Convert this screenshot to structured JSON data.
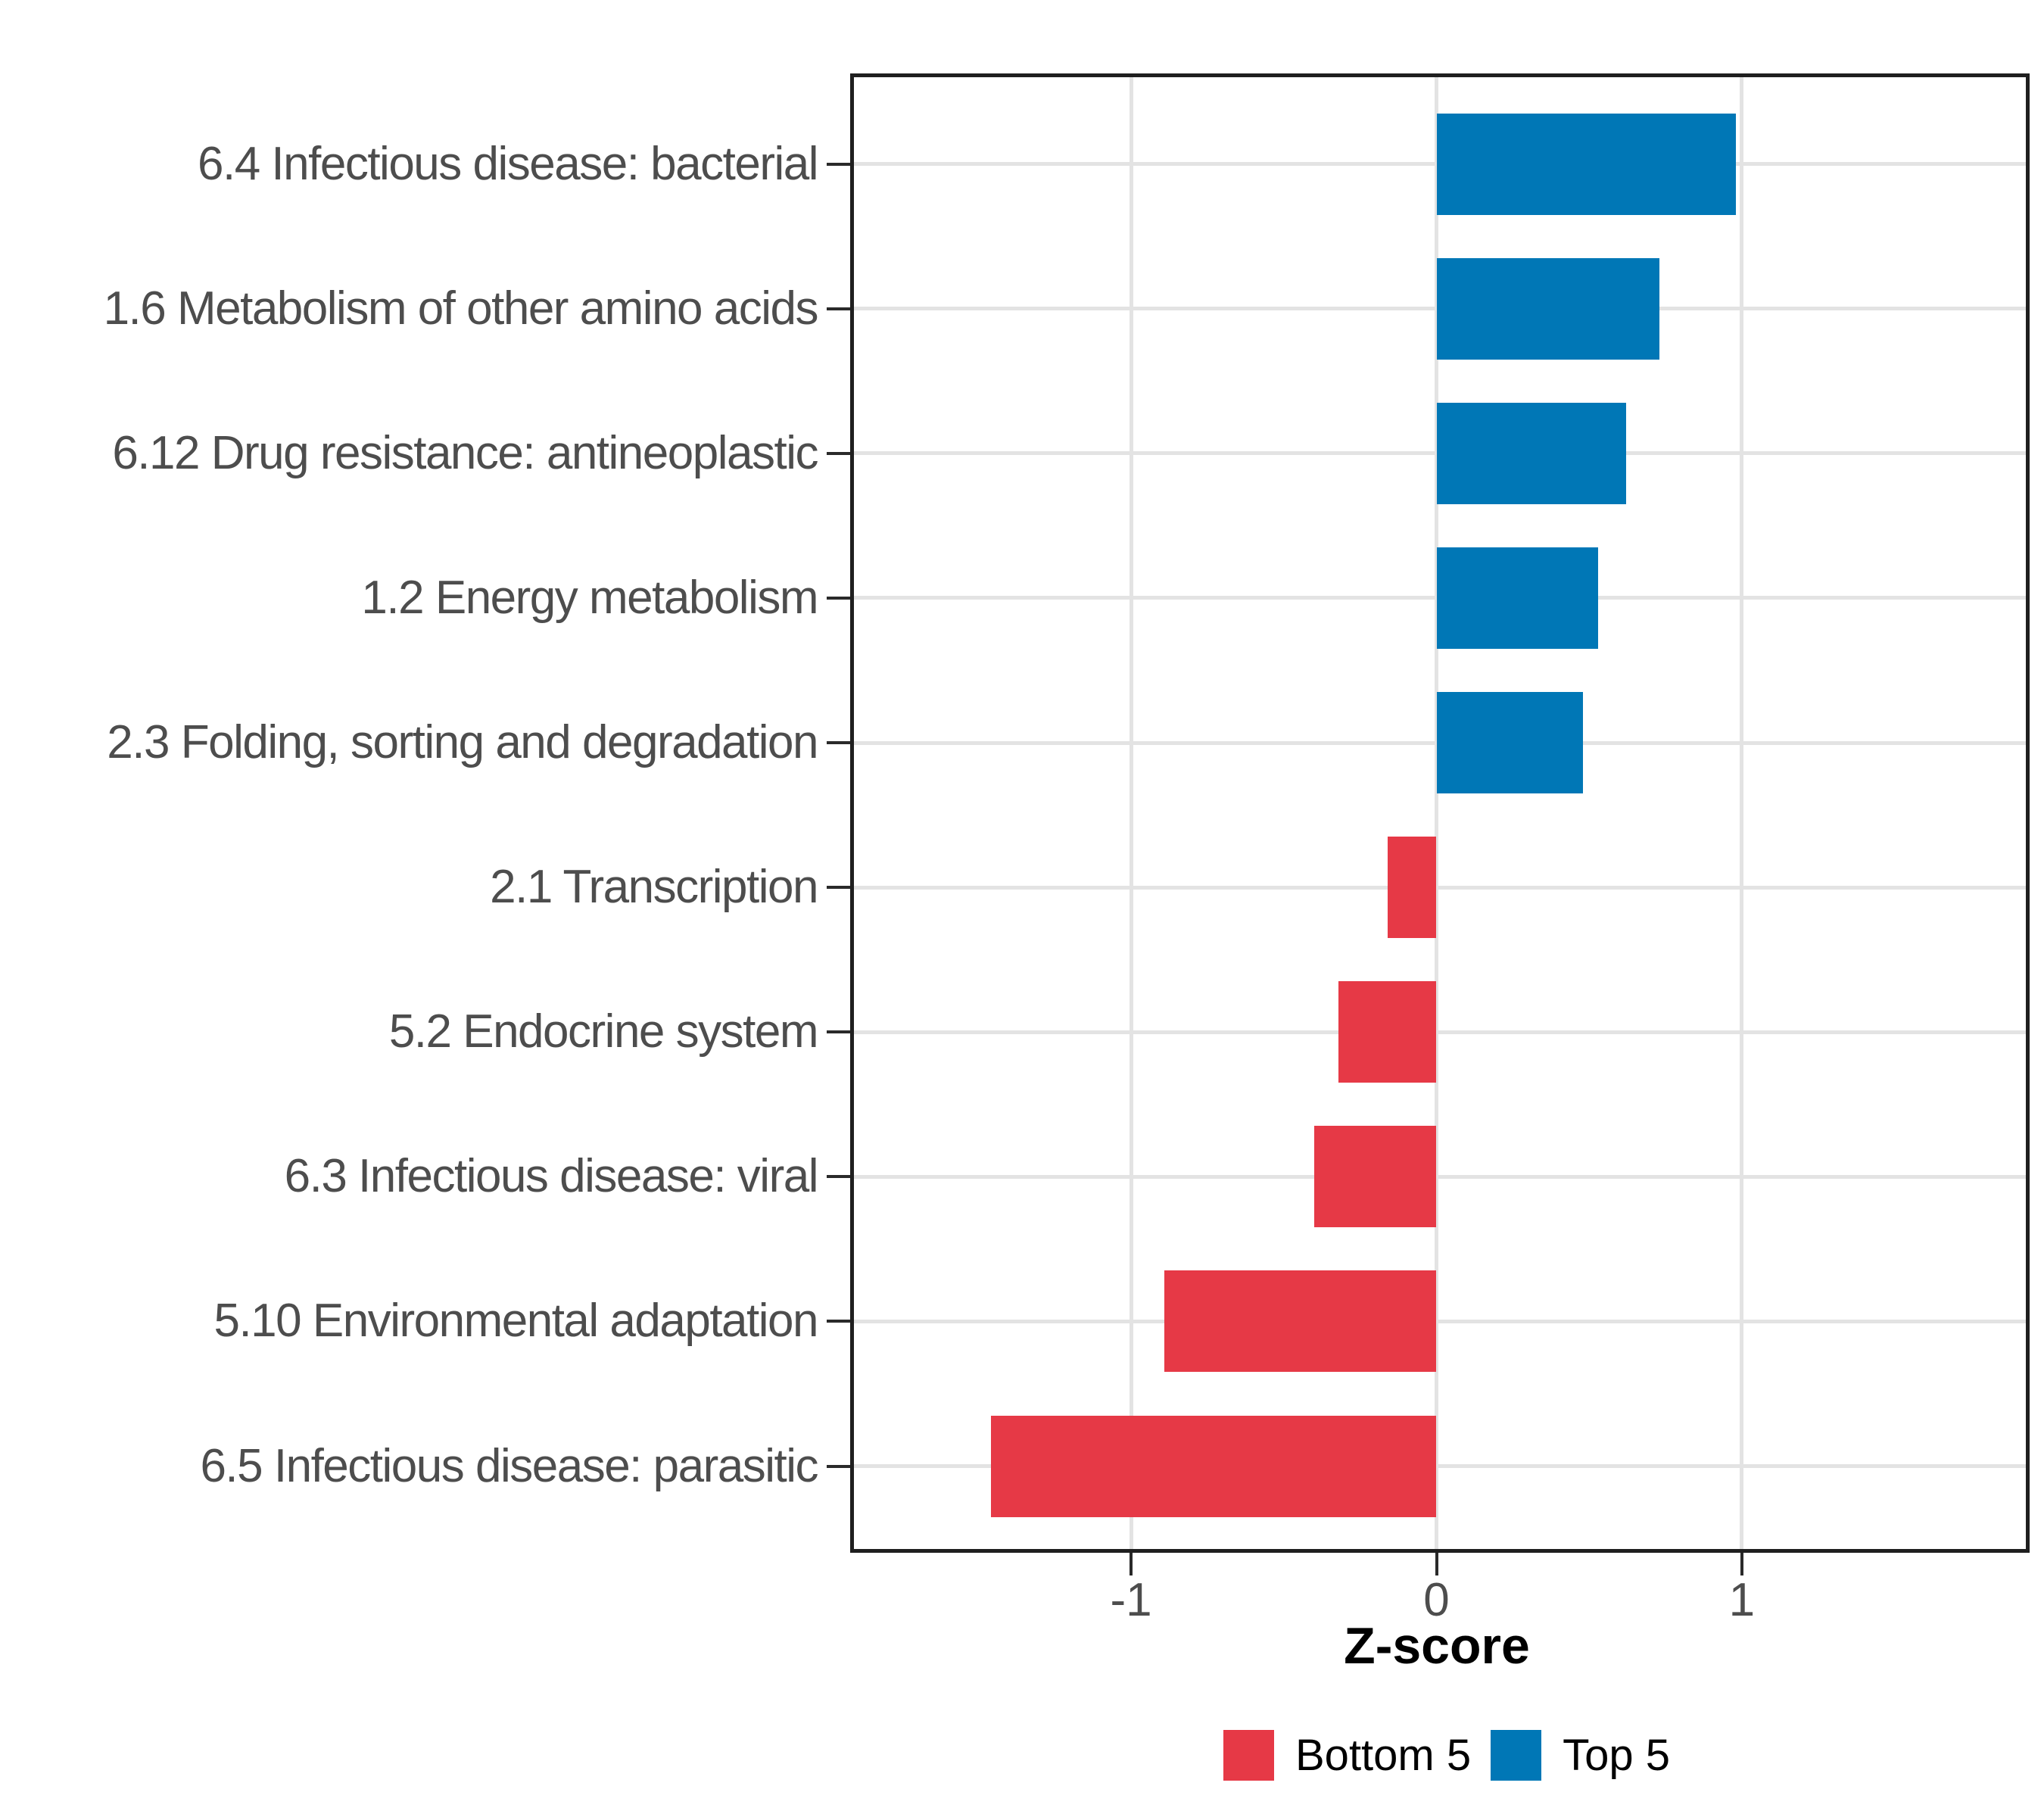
{
  "chart_data": {
    "type": "bar",
    "orientation": "horizontal",
    "title": "",
    "xlabel": "Z-score",
    "ylabel": "",
    "categories": [
      "6.4 Infectious disease: bacterial",
      "1.6 Metabolism of other amino acids",
      "6.12 Drug resistance: antineoplastic",
      "1.2 Energy metabolism",
      "2.3 Folding, sorting and degradation",
      "2.1 Transcription",
      "5.2 Endocrine system",
      "6.3 Infectious disease: viral",
      "5.10 Environmental adaptation",
      "6.5 Infectious disease: parasitic"
    ],
    "values": [
      0.98,
      0.73,
      0.62,
      0.53,
      0.48,
      -0.16,
      -0.32,
      -0.4,
      -0.89,
      -1.46
    ],
    "group_of_bar": [
      "Top 5",
      "Top 5",
      "Top 5",
      "Top 5",
      "Top 5",
      "Bottom 5",
      "Bottom 5",
      "Bottom 5",
      "Bottom 5",
      "Bottom 5"
    ],
    "series": [
      {
        "name": "Top 5",
        "color": "#0077B6",
        "values": [
          0.98,
          0.73,
          0.62,
          0.53,
          0.48
        ]
      },
      {
        "name": "Bottom 5",
        "color": "#E63946",
        "values": [
          -0.16,
          -0.32,
          -0.4,
          -0.89,
          -1.46
        ]
      }
    ],
    "xlim": [
      -1.93,
      1.93
    ],
    "x_ticks": [
      -1,
      0,
      1
    ],
    "x_tick_labels": [
      "-1",
      "0",
      "1"
    ],
    "grid": true,
    "grid_major_color": "#e3e3e3",
    "panel_border_color": "#1f1f1f",
    "axis_text_color": "#4d4d4d",
    "legend_position": "bottom"
  },
  "axis": {
    "x_title": "Z-score"
  },
  "legend": {
    "items": [
      {
        "label": "Bottom 5",
        "color": "#E63946"
      },
      {
        "label": "Top 5",
        "color": "#0077B6"
      }
    ]
  },
  "colors": {
    "top5_blue": "#0077B6",
    "bottom5_red": "#E63946"
  }
}
